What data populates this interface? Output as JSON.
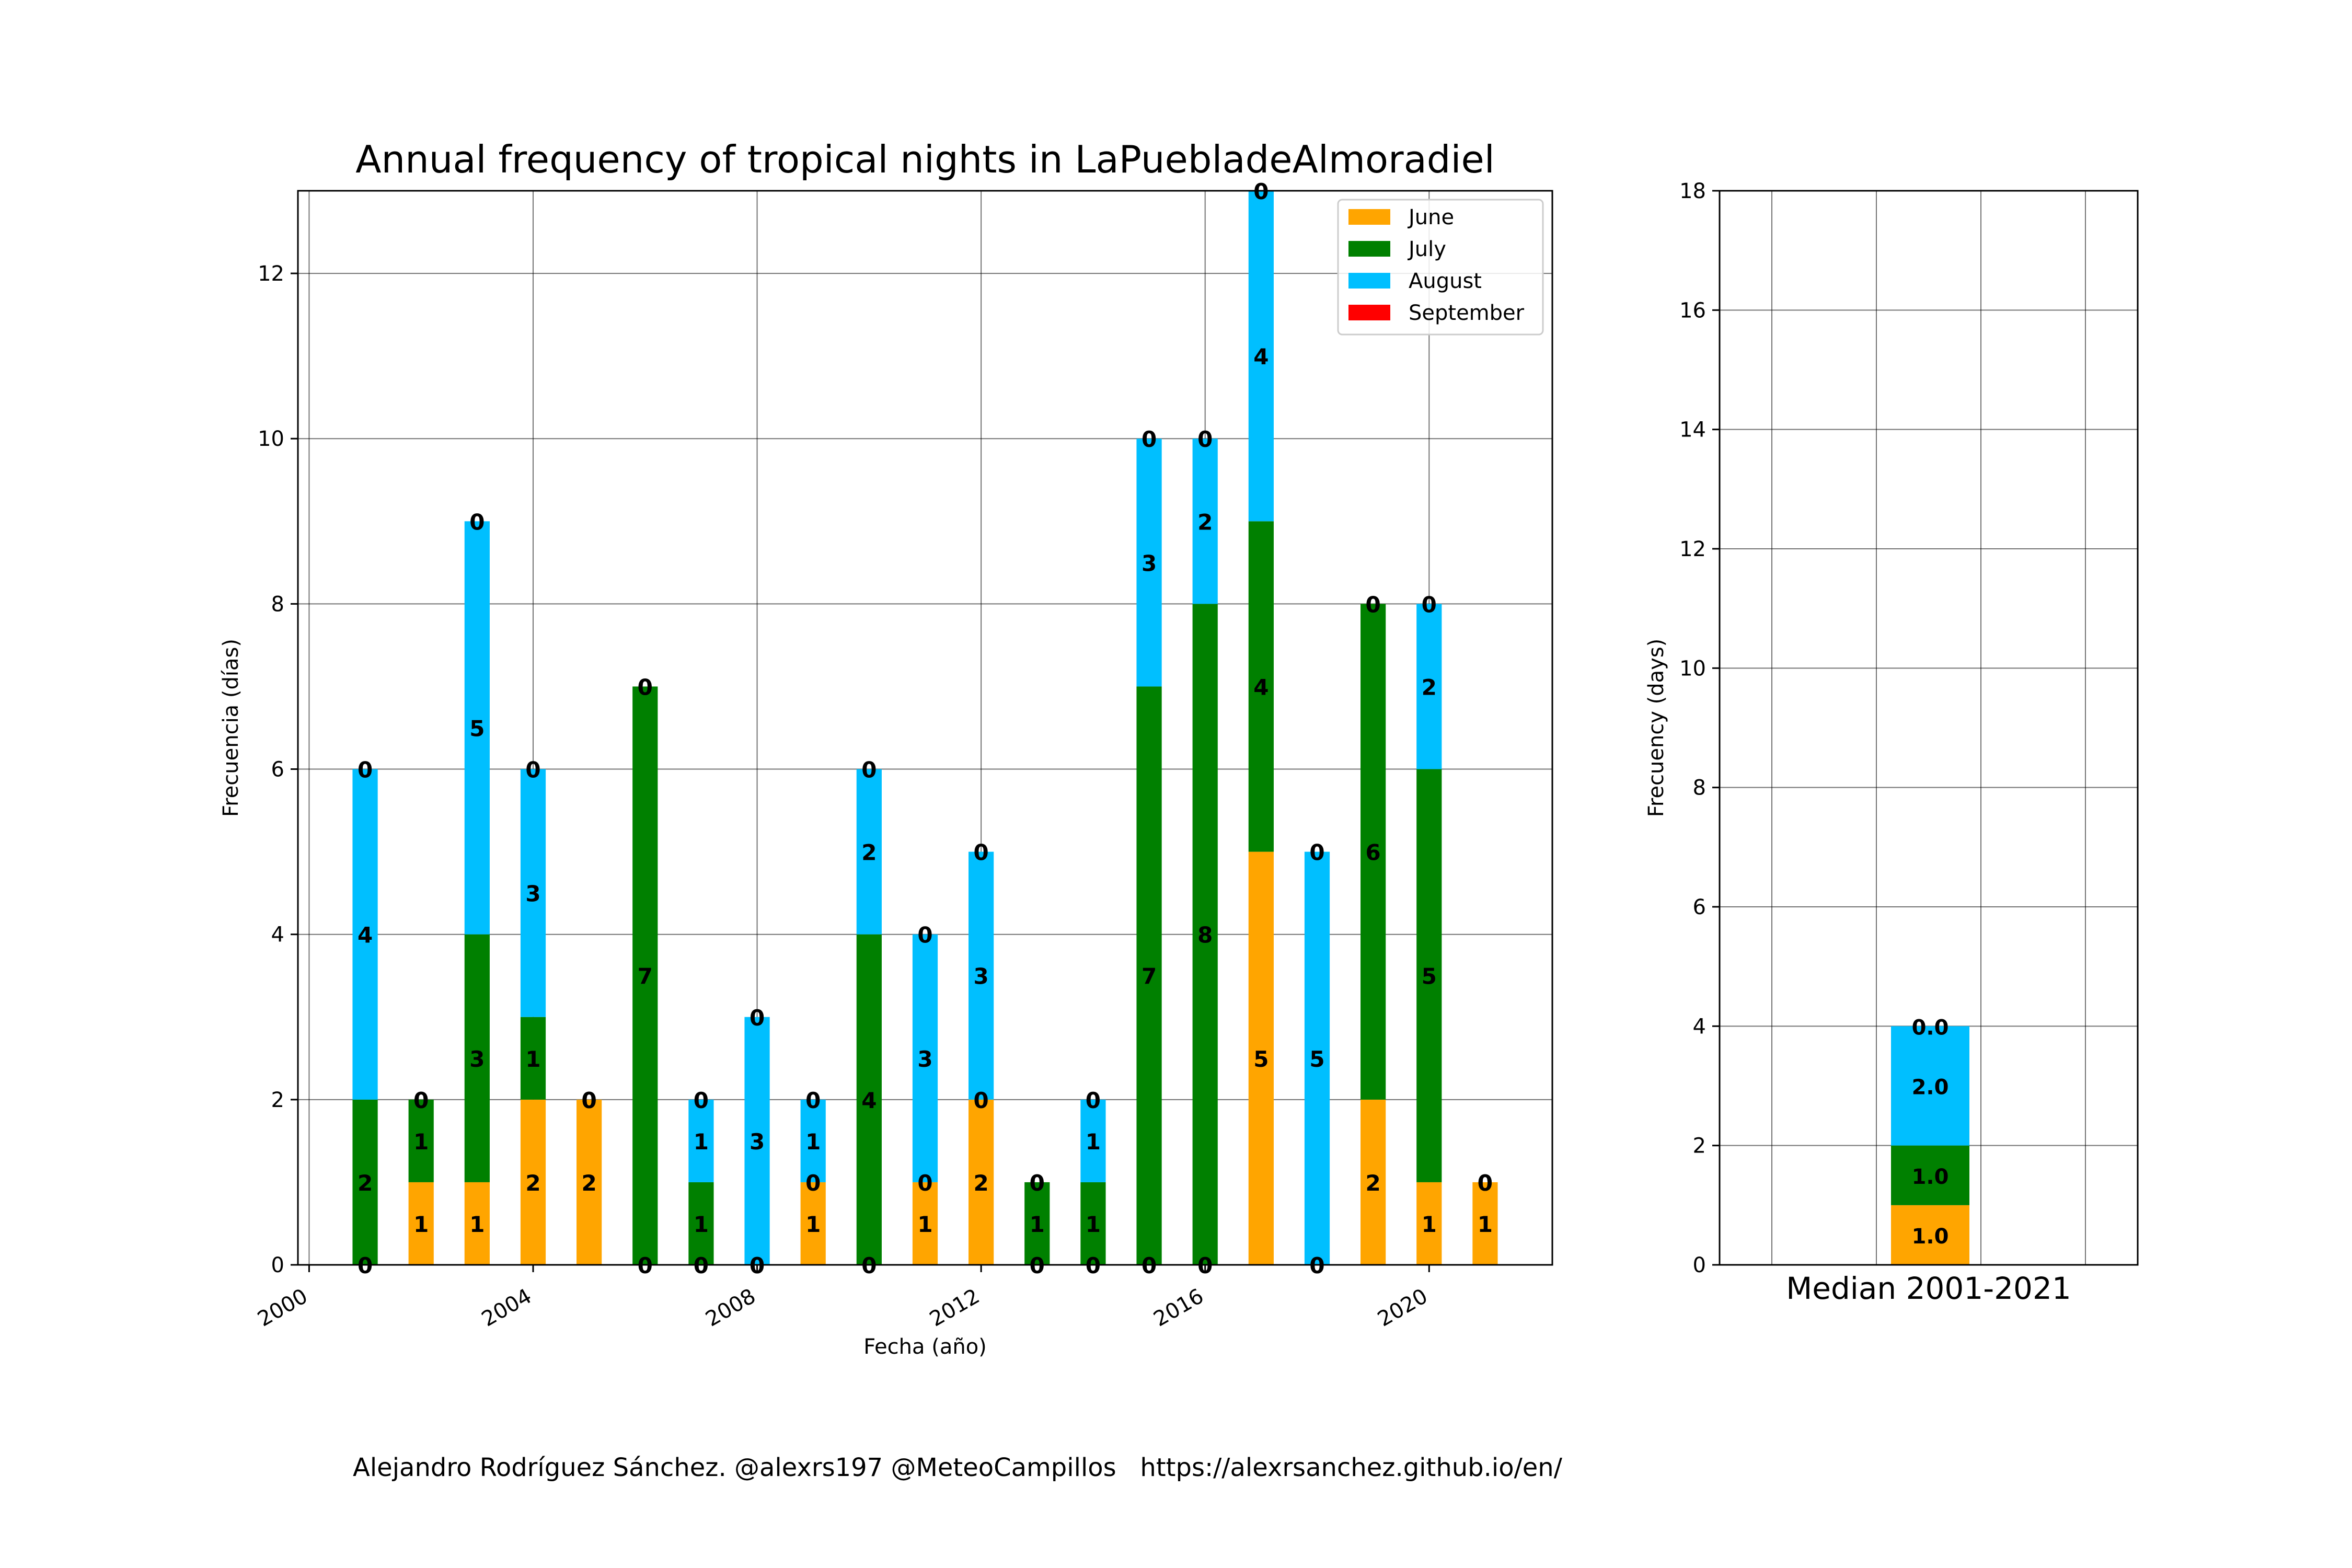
{
  "chart_data": [
    {
      "type": "bar",
      "stacked": true,
      "title": "Annual frequency of tropical nights in LaPuebladeAlmoradiel",
      "xlabel": "Fecha (año)",
      "ylabel": "Frecuencia (días)",
      "xlim": [
        1999.8,
        2022.2
      ],
      "ylim": [
        0,
        13
      ],
      "xticks": [
        "2000",
        "2004",
        "2008",
        "2012",
        "2016",
        "2020"
      ],
      "yticks": [
        "0",
        "2",
        "4",
        "6",
        "8",
        "10",
        "12"
      ],
      "grid": true,
      "legend_position": "top-right",
      "x": [
        2001,
        2002,
        2003,
        2004,
        2005,
        2006,
        2007,
        2008,
        2009,
        2010,
        2011,
        2012,
        2013,
        2014,
        2015,
        2016,
        2017,
        2018,
        2019,
        2020,
        2021
      ],
      "series": [
        {
          "name": "June",
          "color": "#ffa500",
          "values": [
            0,
            1,
            1,
            2,
            2,
            0,
            0,
            0,
            1,
            0,
            1,
            2,
            0,
            0,
            0,
            0,
            5,
            0,
            2,
            1,
            1
          ]
        },
        {
          "name": "July",
          "color": "#008000",
          "values": [
            2,
            1,
            3,
            1,
            0,
            7,
            1,
            0,
            0,
            4,
            0,
            0,
            1,
            1,
            7,
            8,
            4,
            0,
            6,
            5,
            0
          ]
        },
        {
          "name": "August",
          "color": "#00bfff",
          "values": [
            4,
            0,
            5,
            3,
            0,
            0,
            1,
            3,
            1,
            2,
            3,
            3,
            0,
            1,
            3,
            2,
            4,
            5,
            0,
            2,
            0
          ]
        },
        {
          "name": "September",
          "color": "#ff0000",
          "values": [
            0,
            0,
            0,
            0,
            0,
            0,
            0,
            0,
            0,
            0,
            0,
            0,
            0,
            0,
            0,
            0,
            0,
            0,
            0,
            0,
            0
          ]
        }
      ],
      "labels": [
        [
          "0",
          "2",
          "4",
          "0"
        ],
        [
          "1",
          "1",
          "0",
          "0"
        ],
        [
          "1",
          "3",
          "5",
          "0"
        ],
        [
          "2",
          "1",
          "3",
          "0"
        ],
        [
          "2",
          "0",
          "0",
          "0"
        ],
        [
          "0",
          "7",
          "0",
          "0"
        ],
        [
          "0",
          "1",
          "1",
          "0"
        ],
        [
          "0",
          "0",
          "3",
          "0"
        ],
        [
          "1",
          "0",
          "1",
          "0"
        ],
        [
          "0",
          "4",
          "2",
          "0"
        ],
        [
          "1",
          "0",
          "3",
          "0"
        ],
        [
          "2",
          "0",
          "3",
          "0"
        ],
        [
          "0",
          "1",
          "0",
          "0"
        ],
        [
          "0",
          "1",
          "1",
          "0"
        ],
        [
          "0",
          "7",
          "3",
          "0"
        ],
        [
          "0",
          "8",
          "2",
          "0"
        ],
        [
          "5",
          "4",
          "4",
          "0"
        ],
        [
          "0",
          "0",
          "5",
          "0"
        ],
        [
          "2",
          "6",
          "0",
          "0"
        ],
        [
          "1",
          "5",
          "2",
          "0"
        ],
        [
          "1",
          "0",
          "0",
          "0"
        ]
      ]
    },
    {
      "type": "bar",
      "stacked": true,
      "ylabel": "Frecuency (days)",
      "xlabel": "Median 2001-2021",
      "ylim": [
        0,
        18
      ],
      "yticks": [
        "0",
        "2",
        "4",
        "6",
        "8",
        "10",
        "12",
        "14",
        "16",
        "18"
      ],
      "grid": true,
      "series": [
        {
          "name": "June",
          "color": "#ffa500",
          "value": 1.0,
          "label": "1.0"
        },
        {
          "name": "July",
          "color": "#008000",
          "value": 1.0,
          "label": "1.0"
        },
        {
          "name": "August",
          "color": "#00bfff",
          "value": 2.0,
          "label": "2.0"
        },
        {
          "name": "September",
          "color": "#ff0000",
          "value": 0.0,
          "label": "0.0"
        }
      ]
    }
  ],
  "footer": {
    "credit": "Alejandro Rodríguez Sánchez. @alexrs197 @MeteoCampillos   https://alexrsanchez.github.io/en/"
  }
}
